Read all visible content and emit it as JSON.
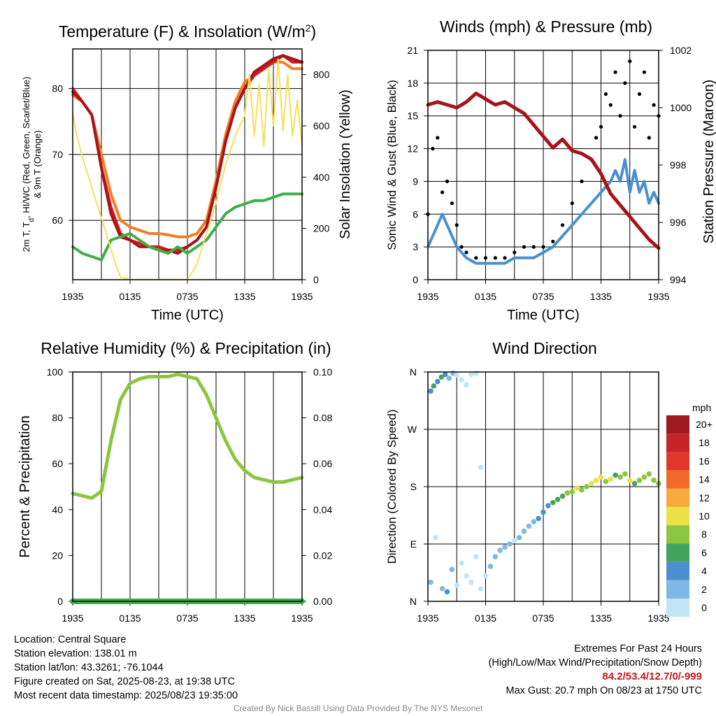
{
  "chart_data": [
    {
      "id": "temperature",
      "type": "line",
      "title": "Temperature (F) & Insolation (W/m",
      "title_sup": "2",
      "title_end": ")",
      "xlabel": "Time (UTC)",
      "ylabel_left": "2m T, T",
      "ylabel_left_sub": "d",
      "ylabel_left_rest": ", HI/WC (Red, Green, Scarlet/Blue)",
      "ylabel_left_line2": "& 9m T (Orange)",
      "ylabel_right": "Solar Insolation (Yellow)",
      "x_ticks": [
        "1935",
        "0135",
        "0735",
        "1335",
        "1935"
      ],
      "x_range": [
        0,
        24
      ],
      "ylim_left": [
        51,
        86
      ],
      "yticks_left": [
        60,
        70,
        80
      ],
      "ylim_right": [
        0,
        900
      ],
      "yticks_right": [
        0,
        200,
        400,
        600,
        800
      ],
      "grid": true,
      "series": [
        {
          "axis": "left",
          "color": "#f07e26",
          "x": [
            0,
            1,
            2,
            3,
            4,
            5,
            6,
            7,
            8,
            9,
            10,
            11,
            12,
            13,
            14,
            15,
            16,
            17,
            18,
            19,
            20,
            21,
            22,
            23,
            24
          ],
          "values": [
            79,
            78,
            76,
            70,
            64,
            60,
            59,
            58.5,
            58,
            58,
            57.8,
            57.5,
            57.5,
            58,
            60,
            66,
            73,
            78,
            81,
            82,
            83,
            84,
            84,
            83,
            83
          ]
        },
        {
          "axis": "left",
          "color": "#d7191c",
          "x": [
            0,
            1,
            2,
            3,
            4,
            5,
            6,
            7,
            8,
            9,
            10,
            11,
            12,
            13,
            14,
            15,
            16,
            17,
            18,
            19,
            20,
            21,
            22,
            23,
            24
          ],
          "values": [
            80,
            78,
            76,
            68,
            62,
            58,
            57,
            56.5,
            56,
            56,
            55.5,
            55.5,
            56,
            57,
            59,
            65,
            72,
            77,
            80,
            82,
            83,
            84,
            85,
            84,
            84
          ]
        },
        {
          "axis": "left",
          "color": "#a6141a",
          "x": [
            0,
            1,
            2,
            3,
            4,
            5,
            6,
            7,
            8,
            9,
            10,
            11,
            12,
            13,
            14,
            15,
            16,
            17,
            18,
            19,
            20,
            21,
            22,
            23,
            24
          ],
          "values": [
            79.5,
            78,
            76,
            68,
            61,
            57.5,
            57,
            56,
            56,
            55.5,
            55.5,
            55,
            56,
            57,
            59,
            65,
            72,
            77,
            80,
            82.5,
            83.5,
            84.5,
            85,
            84.5,
            84
          ]
        },
        {
          "axis": "left",
          "color": "#3fae49",
          "x": [
            0,
            1,
            2,
            3,
            4,
            5,
            6,
            7,
            8,
            9,
            10,
            11,
            12,
            13,
            14,
            15,
            16,
            17,
            18,
            19,
            20,
            21,
            22,
            23,
            24
          ],
          "values": [
            56,
            55,
            54.5,
            54,
            57,
            57.5,
            58,
            57,
            56,
            55.5,
            55,
            56,
            55,
            56,
            57,
            59,
            61,
            62,
            62.5,
            63,
            63,
            63.5,
            64,
            64,
            64
          ]
        },
        {
          "axis": "right",
          "color": "#f3e05a",
          "x": [
            0,
            0.5,
            1,
            1.5,
            2,
            2.5,
            3,
            3.5,
            4,
            4.5,
            5,
            6,
            7,
            8,
            9,
            10,
            11,
            12,
            13,
            14,
            15,
            16,
            17,
            18,
            18.5,
            19,
            19.5,
            20,
            20.5,
            21,
            21.5,
            22,
            22.5,
            23,
            23.5,
            24
          ],
          "values": [
            650,
            550,
            480,
            420,
            360,
            300,
            240,
            180,
            120,
            60,
            10,
            0,
            0,
            0,
            0,
            0,
            0,
            0,
            60,
            180,
            300,
            450,
            560,
            640,
            800,
            560,
            760,
            520,
            820,
            600,
            860,
            580,
            800,
            560,
            700,
            520
          ]
        }
      ]
    },
    {
      "id": "winds",
      "type": "scatter",
      "title": "Winds (mph) & Pressure (mb)",
      "xlabel": "Time (UTC)",
      "ylabel_left": "Sonic Wind & Gust (Blue, Black)",
      "ylabel_right": "Station Pressure (Maroon)",
      "x_ticks": [
        "1935",
        "0135",
        "0735",
        "1335",
        "1935"
      ],
      "x_range": [
        0,
        24
      ],
      "ylim_left": [
        0,
        21
      ],
      "yticks_left": [
        0,
        3,
        6,
        9,
        12,
        15,
        18,
        21
      ],
      "ylim_right": [
        994,
        1002
      ],
      "yticks_right": [
        994,
        996,
        998,
        1000,
        1002
      ],
      "grid": true,
      "series": [
        {
          "name": "",
          "kind": "line",
          "axis": "left",
          "color": "#4a8fd0",
          "x": [
            0,
            0.5,
            1,
            1.5,
            2,
            2.5,
            3,
            3.5,
            4,
            5,
            6,
            7,
            8,
            9,
            10,
            11,
            12,
            13,
            14,
            15,
            16,
            17,
            18,
            19,
            19.5,
            20,
            20.5,
            21,
            21.5,
            22,
            22.5,
            23,
            23.5,
            24
          ],
          "values": [
            3,
            4,
            5,
            6,
            5,
            4,
            3,
            2.5,
            2,
            1.5,
            1.5,
            1.5,
            1.5,
            2,
            2,
            2,
            2.5,
            3,
            4,
            5,
            6,
            7,
            8,
            9,
            10,
            9,
            11,
            8,
            10,
            8,
            9,
            7,
            8,
            7
          ]
        },
        {
          "name": "",
          "kind": "points",
          "axis": "left",
          "color": "#000000",
          "x": [
            0,
            0.5,
            1,
            1.5,
            2,
            2.5,
            3,
            3.5,
            4,
            5,
            6,
            7,
            8,
            9,
            10,
            11,
            12,
            13,
            14,
            15,
            16,
            17,
            17.5,
            18,
            18.5,
            19,
            19.5,
            20,
            20.5,
            21,
            21.5,
            22,
            22.5,
            23,
            23.5,
            24
          ],
          "values": [
            6,
            12,
            13,
            8,
            9,
            7,
            5,
            3,
            2.5,
            2,
            2,
            2,
            2,
            2.5,
            3,
            3,
            3,
            3.5,
            5,
            7,
            9,
            11,
            13,
            14,
            17,
            16,
            19,
            15,
            18,
            20,
            14,
            17,
            19,
            13,
            16,
            15
          ]
        },
        {
          "name": "",
          "kind": "line",
          "axis": "right",
          "color": "#a6141a",
          "x": [
            0,
            1,
            2,
            3,
            4,
            5,
            6,
            7,
            8,
            9,
            10,
            11,
            12,
            13,
            14,
            15,
            16,
            17,
            18,
            19,
            20,
            21,
            22,
            23,
            24
          ],
          "values": [
            1000.1,
            1000.2,
            1000.1,
            1000,
            1000.2,
            1000.5,
            1000.3,
            1000.1,
            1000.2,
            1000,
            999.8,
            999.4,
            999,
            998.6,
            998.9,
            998.5,
            998.4,
            998.2,
            997.7,
            997,
            996.6,
            996.2,
            995.8,
            995.4,
            995.1
          ]
        }
      ]
    },
    {
      "id": "humidity",
      "type": "line",
      "title": "Relative Humidity (%) & Precipitation (in)",
      "xlabel": "",
      "ylabel_left": "Percent & Precipitation",
      "x_ticks": [
        "1935",
        "0135",
        "0735",
        "1335",
        "1935"
      ],
      "x_range": [
        0,
        24
      ],
      "ylim_left": [
        0,
        100
      ],
      "yticks_left": [
        0,
        20,
        40,
        60,
        80,
        100
      ],
      "ylim_right": [
        0,
        0.1
      ],
      "yticks_right": [
        "0.00",
        "0.02",
        "0.04",
        "0.06",
        "0.08",
        "0.10"
      ],
      "grid": true,
      "series": [
        {
          "axis": "left",
          "color": "#8cc63f",
          "x": [
            0,
            1,
            2,
            3,
            4,
            5,
            6,
            7,
            8,
            9,
            10,
            11,
            12,
            13,
            14,
            15,
            16,
            17,
            18,
            19,
            20,
            21,
            22,
            23,
            24
          ],
          "values": [
            47,
            46,
            45,
            48,
            70,
            88,
            95,
            97,
            98,
            98,
            98,
            99,
            98,
            97,
            90,
            80,
            70,
            62,
            57,
            54,
            53,
            52,
            52,
            53,
            54
          ]
        },
        {
          "axis": "right",
          "color": "#3fae49",
          "x": [
            0,
            24
          ],
          "values": [
            0,
            0
          ]
        }
      ]
    },
    {
      "id": "direction",
      "type": "scatter",
      "title": "Wind Direction",
      "xlabel": "",
      "ylabel_left": "Direction (Colored By Speed)",
      "x_ticks": [
        "1935",
        "0135",
        "0735",
        "1335",
        "1935"
      ],
      "x_range": [
        0,
        24
      ],
      "y_ticks": [
        "N",
        "E",
        "S",
        "W",
        "N"
      ],
      "ylim_left": [
        0,
        360
      ],
      "legend_title": "mph",
      "legend_labels": [
        "20+",
        "18",
        "16",
        "14",
        "12",
        "10",
        "8",
        "6",
        "4",
        "2",
        "0"
      ],
      "legend_colors": [
        "#9e1a1f",
        "#c4232a",
        "#e0392c",
        "#f26a2b",
        "#f8a93e",
        "#ebe047",
        "#8cc63f",
        "#43a460",
        "#4a8fd0",
        "#7fb8e4",
        "#c3e3f7"
      ],
      "points": [
        {
          "x": 0.3,
          "y": 330,
          "spd": 4
        },
        {
          "x": 0.6,
          "y": 338,
          "spd": 6
        },
        {
          "x": 1,
          "y": 345,
          "spd": 5
        },
        {
          "x": 1.4,
          "y": 352,
          "spd": 6
        },
        {
          "x": 1.8,
          "y": 356,
          "spd": 5
        },
        {
          "x": 2.2,
          "y": 350,
          "spd": 3
        },
        {
          "x": 2.6,
          "y": 358,
          "spd": 2
        },
        {
          "x": 3,
          "y": 355,
          "spd": 1
        },
        {
          "x": 3.5,
          "y": 348,
          "spd": 1
        },
        {
          "x": 4,
          "y": 340,
          "spd": 0
        },
        {
          "x": 4.5,
          "y": 356,
          "spd": 1
        },
        {
          "x": 5,
          "y": 358,
          "spd": 0
        },
        {
          "x": 5.5,
          "y": 210,
          "spd": 0
        },
        {
          "x": 0.3,
          "y": 30,
          "spd": 2
        },
        {
          "x": 0.8,
          "y": 100,
          "spd": 1
        },
        {
          "x": 1.5,
          "y": 20,
          "spd": 3
        },
        {
          "x": 2,
          "y": 15,
          "spd": 4
        },
        {
          "x": 2.5,
          "y": 50,
          "spd": 2
        },
        {
          "x": 3,
          "y": 25,
          "spd": 1
        },
        {
          "x": 3.5,
          "y": 60,
          "spd": 1
        },
        {
          "x": 4,
          "y": 40,
          "spd": 1
        },
        {
          "x": 4.5,
          "y": 30,
          "spd": 0
        },
        {
          "x": 5,
          "y": 70,
          "spd": 1
        },
        {
          "x": 5.5,
          "y": 20,
          "spd": 0
        },
        {
          "x": 6,
          "y": 40,
          "spd": 1
        },
        {
          "x": 6.5,
          "y": 55,
          "spd": 2
        },
        {
          "x": 7,
          "y": 70,
          "spd": 2
        },
        {
          "x": 7.5,
          "y": 80,
          "spd": 2
        },
        {
          "x": 8,
          "y": 85,
          "spd": 2
        },
        {
          "x": 8.5,
          "y": 90,
          "spd": 2
        },
        {
          "x": 9,
          "y": 95,
          "spd": 1
        },
        {
          "x": 9.5,
          "y": 100,
          "spd": 2
        },
        {
          "x": 10,
          "y": 110,
          "spd": 2
        },
        {
          "x": 10.5,
          "y": 118,
          "spd": 3
        },
        {
          "x": 11,
          "y": 125,
          "spd": 3
        },
        {
          "x": 11.5,
          "y": 130,
          "spd": 4
        },
        {
          "x": 12,
          "y": 140,
          "spd": 4
        },
        {
          "x": 12.5,
          "y": 150,
          "spd": 5
        },
        {
          "x": 13,
          "y": 155,
          "spd": 6
        },
        {
          "x": 13.5,
          "y": 160,
          "spd": 6
        },
        {
          "x": 14,
          "y": 165,
          "spd": 7
        },
        {
          "x": 14.5,
          "y": 170,
          "spd": 8
        },
        {
          "x": 15,
          "y": 172,
          "spd": 9
        },
        {
          "x": 15.5,
          "y": 178,
          "spd": 10
        },
        {
          "x": 16,
          "y": 175,
          "spd": 8
        },
        {
          "x": 16.5,
          "y": 180,
          "spd": 9
        },
        {
          "x": 17,
          "y": 185,
          "spd": 10
        },
        {
          "x": 17.5,
          "y": 190,
          "spd": 11
        },
        {
          "x": 18,
          "y": 195,
          "spd": 10
        },
        {
          "x": 18.5,
          "y": 188,
          "spd": 8
        },
        {
          "x": 19,
          "y": 192,
          "spd": 10
        },
        {
          "x": 19.5,
          "y": 198,
          "spd": 7
        },
        {
          "x": 20,
          "y": 195,
          "spd": 9
        },
        {
          "x": 20.5,
          "y": 200,
          "spd": 8
        },
        {
          "x": 21,
          "y": 190,
          "spd": 10
        },
        {
          "x": 21.5,
          "y": 185,
          "spd": 6
        },
        {
          "x": 22,
          "y": 190,
          "spd": 8
        },
        {
          "x": 22.5,
          "y": 195,
          "spd": 9
        },
        {
          "x": 23,
          "y": 200,
          "spd": 8
        },
        {
          "x": 23.5,
          "y": 190,
          "spd": 9
        },
        {
          "x": 24,
          "y": 185,
          "spd": 8
        }
      ]
    }
  ],
  "info": {
    "location": "Location: Central Square",
    "elevation": "Station elevation: 138.01 m",
    "latlon": "Station lat/lon: 43.3261; -76.1044",
    "created": "Figure created on Sat, 2025-08-23, at 19:38 UTC",
    "recent": "Most recent data timestamp: 2025/08/23 19:35:00"
  },
  "extremes": {
    "title": "Extremes For Past 24 Hours",
    "subtitle": "(High/Low/Max Wind/Precipitation/Snow Depth)",
    "values": "84.2/53.4/12.7/0/-999",
    "gust": "Max Gust: 20.7 mph On 08/23 at 1750 UTC"
  },
  "credit": "Created By Nick Bassill Using Data Provided By The NYS Mesonet"
}
